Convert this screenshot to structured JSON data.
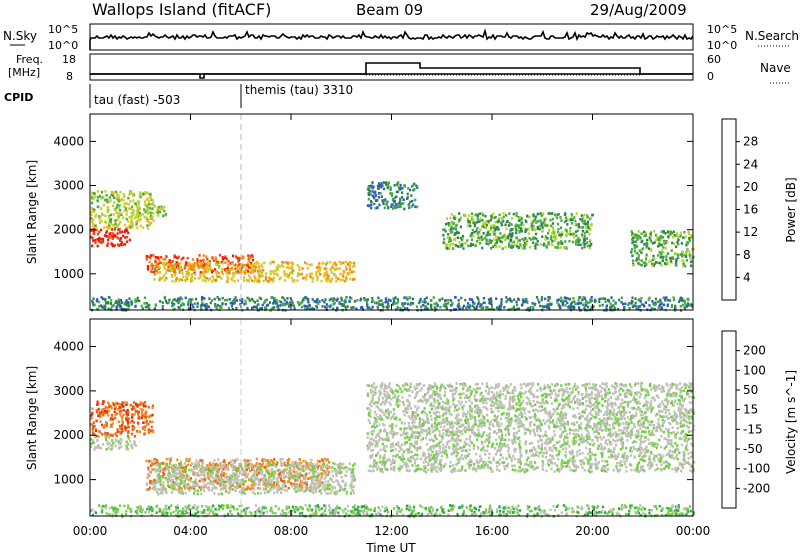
{
  "header": {
    "title": "Wallops Island (fitACF)",
    "beam": "Beam 09",
    "date": "29/Aug/2009"
  },
  "aux_panels": {
    "nsky_label": "N.Sky",
    "nsearch_label": "N.Search",
    "nsky_ticks": [
      "10^5",
      "10^0"
    ],
    "nsearch_ticks": [
      "10^5",
      "10^0"
    ],
    "freq_label": [
      "Freq.",
      "[MHz]"
    ],
    "freq_ticks": [
      "18",
      "8"
    ],
    "nave_label": "Nave",
    "nave_ticks": [
      "60",
      "0"
    ],
    "cpid_label": "CPID",
    "cpid_entries": [
      "tau (fast) -503",
      "themis (tau) 3310"
    ]
  },
  "colors": {
    "power_scale": [
      "#1a1aff",
      "#2a55c8",
      "#2f7f55",
      "#44aa44",
      "#b4d628",
      "#f0c020",
      "#f08a10",
      "#f24a0a",
      "#e8180a"
    ],
    "velocity_scale": [
      "#2020d0",
      "#2a70d0",
      "#2ea84a",
      "#70d040",
      "#c0c0b8",
      "#c0c0b8",
      "#f09020",
      "#f06010",
      "#e83010",
      "#e01010"
    ]
  },
  "chart_data": [
    {
      "type": "heatmap",
      "name": "power",
      "ylabel": "Slant Range [km]",
      "yticks": [
        "1000",
        "2000",
        "3000",
        "4000"
      ],
      "colorbar_label": "Power [dB]",
      "colorbar_ticks": [
        "4",
        "8",
        "12",
        "16",
        "20",
        "24",
        "28"
      ],
      "xticks": [
        "00:00",
        "04:00",
        "08:00",
        "12:00",
        "16:00",
        "20:00",
        "00:00"
      ],
      "ylim": [
        180,
        4620
      ],
      "xlim": [
        0,
        24
      ],
      "regions": [
        {
          "t": [
            0,
            1.6
          ],
          "r": [
            1650,
            2050
          ],
          "level": 8
        },
        {
          "t": [
            0,
            2.5
          ],
          "r": [
            2050,
            2900
          ],
          "level": 4
        },
        {
          "t": [
            1.8,
            3.0
          ],
          "r": [
            2300,
            2600
          ],
          "level": 4
        },
        {
          "t": [
            2.2,
            6.5
          ],
          "r": [
            1050,
            1450
          ],
          "level": 7
        },
        {
          "t": [
            2.5,
            10.5
          ],
          "r": [
            850,
            1300
          ],
          "level": 5
        },
        {
          "t": [
            11.0,
            13.0
          ],
          "r": [
            2500,
            3100
          ],
          "level": 2
        },
        {
          "t": [
            14.0,
            20.0
          ],
          "r": [
            1600,
            2400
          ],
          "level": 3
        },
        {
          "t": [
            21.5,
            24.0
          ],
          "r": [
            1200,
            2000
          ],
          "level": 3
        },
        {
          "t": [
            0,
            24
          ],
          "r": [
            200,
            500
          ],
          "level": 2
        }
      ]
    },
    {
      "type": "heatmap",
      "name": "velocity",
      "ylabel": "Slant Range [km]",
      "yticks": [
        "1000",
        "2000",
        "3000",
        "4000"
      ],
      "colorbar_label": "Velocity [m s^-1]",
      "colorbar_ticks": [
        "200",
        "100",
        "50",
        "15",
        "-15",
        "-50",
        "-100",
        "-200"
      ],
      "xticks": [
        "00:00",
        "04:00",
        "08:00",
        "12:00",
        "16:00",
        "20:00",
        "00:00"
      ],
      "xlabel": "Time UT",
      "ylim": [
        180,
        4620
      ],
      "xlim": [
        0,
        24
      ],
      "regions": [
        {
          "t": [
            0,
            2.5
          ],
          "r": [
            2000,
            2800
          ],
          "level": 7
        },
        {
          "t": [
            0,
            1.8
          ],
          "r": [
            1700,
            2000
          ],
          "level": 4
        },
        {
          "t": [
            2.2,
            9.5
          ],
          "r": [
            800,
            1500
          ],
          "level": 6
        },
        {
          "t": [
            2.5,
            10.5
          ],
          "r": [
            700,
            1400
          ],
          "level": 4
        },
        {
          "t": [
            11.0,
            24.0
          ],
          "r": [
            1200,
            3200
          ],
          "level": 4
        },
        {
          "t": [
            0,
            24
          ],
          "r": [
            200,
            450
          ],
          "level": 3
        }
      ]
    }
  ]
}
